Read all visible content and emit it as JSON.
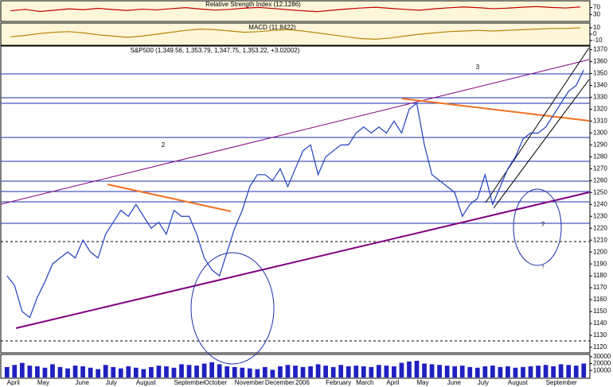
{
  "chart_data": [
    {
      "type": "line",
      "title": "Relative Strength Index (12,1286)",
      "color": "#c00000",
      "values": [
        52,
        60,
        48,
        55,
        63,
        58,
        66,
        59,
        54,
        61,
        57,
        64,
        70,
        62,
        56,
        60,
        67,
        71,
        65,
        58,
        52,
        47,
        55,
        62,
        68,
        72,
        66,
        60,
        55,
        63,
        69,
        74,
        70,
        64,
        67,
        72,
        76,
        71,
        68,
        74
      ],
      "ylim": [
        0,
        100
      ],
      "yticks": [
        30,
        70
      ]
    },
    {
      "type": "line",
      "title": "MACD (11.8422)",
      "color": "#b8860b",
      "values": [
        -4,
        -2,
        1,
        3,
        4,
        2,
        -1,
        -3,
        -5,
        -3,
        0,
        3,
        6,
        8,
        7,
        5,
        3,
        4,
        6,
        7,
        5,
        2,
        -1,
        -4,
        -7,
        -8,
        -6,
        -3,
        0,
        2,
        4,
        5,
        6,
        5,
        6,
        7,
        8,
        9,
        9,
        10
      ],
      "ylim": [
        -15,
        15
      ],
      "yticks": [
        10,
        0,
        -10
      ]
    },
    {
      "type": "line",
      "title": "S&P500 (1,349.56, 1,353.79, 1,347.75, 1,353.22, +3.02002)",
      "color": "#1f3fbf",
      "categories": [
        "April",
        null,
        null,
        null,
        "May",
        null,
        null,
        null,
        null,
        "June",
        null,
        null,
        null,
        "July",
        null,
        null,
        null,
        "August",
        null,
        null,
        null,
        null,
        "September",
        null,
        null,
        null,
        "October",
        null,
        null,
        null,
        "November",
        null,
        null,
        null,
        "December",
        null,
        null,
        null,
        "2006",
        null,
        null,
        null,
        "February",
        null,
        null,
        null,
        "March",
        null,
        null,
        null,
        "April",
        null,
        null,
        null,
        "May",
        null,
        null,
        null,
        "June",
        null,
        null,
        null,
        "July",
        null,
        null,
        null,
        "August",
        null,
        null,
        null,
        null,
        "September",
        null,
        null,
        null,
        null,
        null
      ],
      "values": [
        1180,
        1172,
        1150,
        1145,
        1162,
        1175,
        1190,
        1195,
        1200,
        1195,
        1210,
        1200,
        1195,
        1215,
        1225,
        1235,
        1230,
        1240,
        1230,
        1220,
        1225,
        1215,
        1235,
        1230,
        1230,
        1215,
        1195,
        1185,
        1180,
        1200,
        1220,
        1235,
        1255,
        1265,
        1265,
        1260,
        1270,
        1255,
        1270,
        1285,
        1290,
        1265,
        1280,
        1285,
        1290,
        1290,
        1300,
        1305,
        1300,
        1305,
        1300,
        1310,
        1300,
        1320,
        1325,
        1290,
        1265,
        1260,
        1255,
        1250,
        1230,
        1240,
        1245,
        1265,
        1240,
        1255,
        1270,
        1280,
        1295,
        1300,
        1300,
        1305,
        1315,
        1325,
        1335,
        1340,
        1353
      ],
      "ylim": [
        1116,
        1373
      ],
      "yticks": [
        1120,
        1130,
        1140,
        1150,
        1160,
        1170,
        1180,
        1190,
        1200,
        1210,
        1220,
        1230,
        1240,
        1250,
        1260,
        1270,
        1280,
        1290,
        1300,
        1310,
        1320,
        1330,
        1340,
        1350,
        1360,
        1370
      ],
      "annotations": [
        "2",
        "3",
        "?",
        "↑"
      ]
    },
    {
      "type": "bar",
      "color": "#2020c0",
      "values": [
        15000,
        18000,
        21000,
        17000,
        16000,
        14000,
        19000,
        15000,
        13000,
        17000,
        16000,
        14000,
        12000,
        18000,
        15000,
        13000,
        16000,
        14000,
        12000,
        15000,
        17000,
        16000,
        14000,
        19000,
        18000,
        17000,
        20000,
        22000,
        19000,
        16000,
        15000,
        14000,
        13000,
        12000,
        15000,
        11000,
        16000,
        18000,
        17000,
        15000,
        16000,
        19000,
        17000,
        15000,
        18000,
        16000,
        17000,
        16000,
        15000,
        18000,
        17000,
        16000,
        21000,
        23000,
        24000,
        20000,
        19000,
        18000,
        17000,
        16000,
        17000,
        15000,
        14000,
        16000,
        17000,
        15000,
        16000,
        14000,
        15000,
        16000,
        17000,
        18000,
        16000,
        19000,
        18000,
        17000,
        20000
      ],
      "ylim": [
        0,
        32000
      ],
      "yticks": [
        10000,
        20000,
        30000
      ]
    }
  ]
}
